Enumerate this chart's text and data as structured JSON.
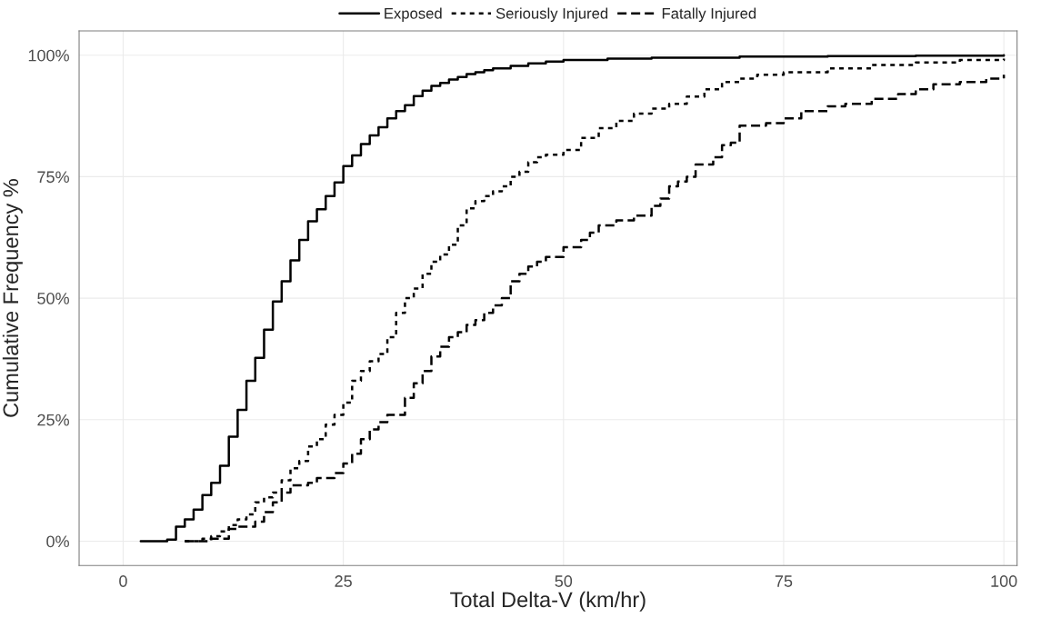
{
  "chart_data": {
    "type": "step",
    "xlabel": "Total Delta-V (km/hr)",
    "ylabel": "Cumulative Frequency %",
    "xlim": [
      -5,
      101.5
    ],
    "ylim": [
      -5,
      105
    ],
    "xticks": [
      0,
      25,
      50,
      75,
      100
    ],
    "yticks": [
      {
        "value": 0,
        "label": "0%"
      },
      {
        "value": 25,
        "label": "25%"
      },
      {
        "value": 50,
        "label": "50%"
      },
      {
        "value": 75,
        "label": "75%"
      },
      {
        "value": 100,
        "label": "100%"
      }
    ],
    "grid": true,
    "legend": "top",
    "series": [
      {
        "name": "Exposed",
        "color": "#000000",
        "line_style": "solid",
        "x": [
          2,
          5,
          6,
          7,
          8,
          9,
          10,
          11,
          12,
          13,
          14,
          15,
          16,
          17,
          18,
          19,
          20,
          21,
          22,
          23,
          24,
          25,
          26,
          27,
          28,
          29,
          30,
          31,
          32,
          33,
          34,
          35,
          36,
          37,
          38,
          39,
          40,
          41,
          42,
          44,
          46,
          48,
          50,
          55,
          60,
          70,
          80,
          90,
          100
        ],
        "values": [
          0,
          0.3,
          3,
          4.5,
          6.5,
          9.5,
          12,
          15.5,
          21.5,
          27,
          33,
          37.7,
          43.5,
          49.3,
          53.5,
          57.8,
          62,
          65.8,
          68.3,
          71,
          73.8,
          77.2,
          79.4,
          81.7,
          83.5,
          85.2,
          87,
          88.5,
          89.7,
          91.6,
          92.7,
          93.7,
          94.3,
          95,
          95.5,
          96.1,
          96.5,
          96.9,
          97.3,
          97.8,
          98.3,
          98.7,
          99,
          99.3,
          99.5,
          99.7,
          99.8,
          99.9,
          100
        ]
      },
      {
        "name": "Seriously Injured",
        "color": "#000000",
        "line_style": "dotted",
        "x": [
          7,
          9,
          10,
          11,
          12,
          13,
          14,
          15,
          16,
          17,
          18,
          19,
          20,
          21,
          22,
          23,
          24,
          25,
          26,
          27,
          28,
          29,
          30,
          31,
          32,
          33,
          34,
          35,
          36,
          37,
          38,
          39,
          40,
          41,
          42,
          43,
          44,
          45,
          46,
          47,
          48,
          50,
          52,
          54,
          56,
          58,
          60,
          62,
          64,
          66,
          68,
          70,
          72,
          75,
          80,
          85,
          90,
          95,
          100
        ],
        "values": [
          0,
          0.5,
          1,
          2,
          3.3,
          4.5,
          5.5,
          8,
          9,
          10,
          12.5,
          15,
          16.5,
          19.5,
          21,
          24,
          26,
          28.5,
          33,
          35,
          37,
          38.5,
          42,
          47,
          50,
          52,
          55,
          57.5,
          59,
          61,
          65,
          68.5,
          70,
          71,
          72,
          73,
          75,
          76,
          78,
          79,
          79.5,
          80.5,
          83,
          85,
          86.5,
          88,
          89,
          90,
          91.5,
          93,
          94.5,
          95.2,
          96,
          96.5,
          97.3,
          98,
          98.5,
          99,
          99.3
        ]
      },
      {
        "name": "Fatally Injured",
        "color": "#000000",
        "line_style": "dashed",
        "x": [
          7,
          10,
          12,
          13,
          15,
          16,
          17,
          18,
          19,
          21,
          22,
          24,
          25,
          26,
          27,
          28,
          29,
          30,
          32,
          33,
          34,
          35,
          36,
          37,
          38,
          39,
          40,
          41,
          42,
          43,
          44,
          45,
          46,
          47,
          48,
          50,
          52,
          53,
          54,
          56,
          58,
          60,
          61,
          62,
          63,
          64,
          65,
          67,
          68,
          69,
          70,
          73,
          75,
          77,
          80,
          82,
          85,
          88,
          90,
          92,
          95,
          98,
          100
        ],
        "values": [
          0,
          0.5,
          2.5,
          3,
          4,
          6,
          8,
          10,
          11.5,
          12,
          13,
          14,
          16,
          18,
          21,
          23,
          24.5,
          26,
          29.5,
          32.5,
          35,
          38,
          40,
          42,
          43,
          44.5,
          45.5,
          47,
          48.5,
          50,
          53.5,
          55,
          56.5,
          57.5,
          58.5,
          60.5,
          62,
          63.5,
          65,
          66,
          67,
          69,
          70.5,
          73,
          74,
          75,
          77.5,
          79,
          81.5,
          82,
          85.5,
          86,
          87,
          88.5,
          89.5,
          90,
          91,
          92,
          93,
          94,
          94.5,
          95.2,
          96
        ]
      }
    ]
  }
}
